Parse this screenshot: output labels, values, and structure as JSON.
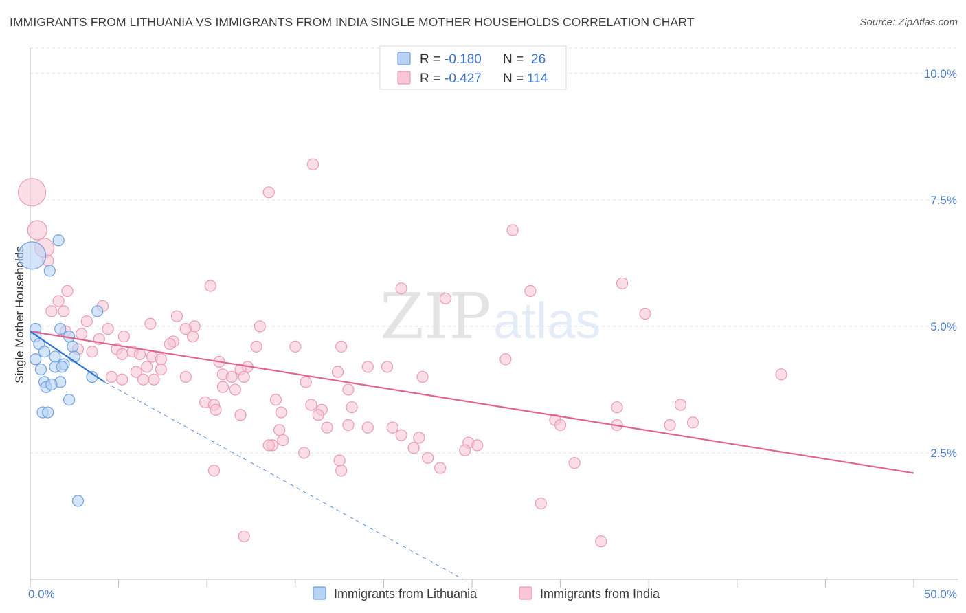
{
  "header": {
    "title": "IMMIGRANTS FROM LITHUANIA VS IMMIGRANTS FROM INDIA SINGLE MOTHER HOUSEHOLDS CORRELATION CHART",
    "source": "Source: ZipAtlas.com"
  },
  "watermark": {
    "zip": "ZIP",
    "atlas": "atlas"
  },
  "colors": {
    "lithuania_fill": "#b9d3f5",
    "lithuania_stroke": "#6f9fdc",
    "lithuania_line": "#2f72cf",
    "india_fill": "#f9c6d6",
    "india_stroke": "#e99ab5",
    "india_line": "#e0648f",
    "value_text": "#3b74c9",
    "grid": "#dde1e6"
  },
  "legend_top": [
    {
      "r_label": "R = ",
      "r_value": "-0.180",
      "n_label": "N = ",
      "n_value": "26"
    },
    {
      "r_label": "R = ",
      "r_value": "-0.427",
      "n_label": "N = ",
      "n_value": "114"
    }
  ],
  "chart_data": {
    "type": "scatter",
    "title": "IMMIGRANTS FROM LITHUANIA VS IMMIGRANTS FROM INDIA SINGLE MOTHER HOUSEHOLDS CORRELATION CHART",
    "xlabel": "",
    "ylabel": "Single Mother Households",
    "xlim": [
      0,
      50
    ],
    "ylim": [
      0,
      10.5
    ],
    "x_tick_labels": [
      "0.0%",
      "50.0%"
    ],
    "y_ticks": [
      2.5,
      5.0,
      7.5,
      10.0
    ],
    "y_tick_labels": [
      "2.5%",
      "5.0%",
      "7.5%",
      "10.0%"
    ],
    "grid": true,
    "legend_position": "bottom-center",
    "series": [
      {
        "name": "Immigrants from Lithuania",
        "r": -0.18,
        "n": 26,
        "trend": {
          "x": [
            0,
            4.2
          ],
          "y": [
            4.9,
            3.9
          ]
        },
        "trend_extension": {
          "x": [
            4.2,
            24.5
          ],
          "y": [
            3.9,
            0
          ]
        },
        "points": [
          {
            "x": 0.1,
            "y": 6.4,
            "s": 3
          },
          {
            "x": 1.6,
            "y": 6.7,
            "s": 1
          },
          {
            "x": 1.1,
            "y": 6.1,
            "s": 1
          },
          {
            "x": 3.8,
            "y": 5.3,
            "s": 1
          },
          {
            "x": 0.3,
            "y": 4.95,
            "s": 1
          },
          {
            "x": 1.7,
            "y": 4.95,
            "s": 1
          },
          {
            "x": 0.3,
            "y": 4.8,
            "s": 1
          },
          {
            "x": 2.2,
            "y": 4.8,
            "s": 1
          },
          {
            "x": 0.5,
            "y": 4.65,
            "s": 1
          },
          {
            "x": 2.4,
            "y": 4.6,
            "s": 1
          },
          {
            "x": 0.8,
            "y": 4.5,
            "s": 1
          },
          {
            "x": 0.3,
            "y": 4.35,
            "s": 1
          },
          {
            "x": 2.5,
            "y": 4.4,
            "s": 1
          },
          {
            "x": 1.4,
            "y": 4.4,
            "s": 1
          },
          {
            "x": 1.9,
            "y": 4.25,
            "s": 1
          },
          {
            "x": 1.4,
            "y": 4.2,
            "s": 1
          },
          {
            "x": 0.6,
            "y": 4.15,
            "s": 1
          },
          {
            "x": 1.8,
            "y": 4.2,
            "s": 1
          },
          {
            "x": 3.5,
            "y": 4.0,
            "s": 1
          },
          {
            "x": 0.8,
            "y": 3.9,
            "s": 1
          },
          {
            "x": 1.7,
            "y": 3.9,
            "s": 1
          },
          {
            "x": 0.9,
            "y": 3.8,
            "s": 1
          },
          {
            "x": 1.2,
            "y": 3.85,
            "s": 1
          },
          {
            "x": 2.2,
            "y": 3.55,
            "s": 1
          },
          {
            "x": 0.7,
            "y": 3.3,
            "s": 1
          },
          {
            "x": 1.0,
            "y": 3.3,
            "s": 1
          },
          {
            "x": 2.7,
            "y": 1.55,
            "s": 1
          }
        ]
      },
      {
        "name": "Immigrants from India",
        "r": -0.427,
        "n": 114,
        "trend": {
          "x": [
            0,
            50
          ],
          "y": [
            4.9,
            2.1
          ]
        },
        "points": [
          {
            "x": 0.1,
            "y": 7.65,
            "s": 3
          },
          {
            "x": 0.4,
            "y": 6.9,
            "s": 2
          },
          {
            "x": 0.8,
            "y": 6.55,
            "s": 2
          },
          {
            "x": 1.0,
            "y": 6.3,
            "s": 1
          },
          {
            "x": 16.0,
            "y": 8.2,
            "s": 1
          },
          {
            "x": 13.5,
            "y": 7.65,
            "s": 1
          },
          {
            "x": 27.3,
            "y": 6.9,
            "s": 1
          },
          {
            "x": 10.2,
            "y": 5.8,
            "s": 1
          },
          {
            "x": 21.0,
            "y": 5.75,
            "s": 1
          },
          {
            "x": 28.3,
            "y": 5.7,
            "s": 1
          },
          {
            "x": 33.5,
            "y": 5.85,
            "s": 1
          },
          {
            "x": 2.1,
            "y": 5.7,
            "s": 1
          },
          {
            "x": 1.6,
            "y": 5.5,
            "s": 1
          },
          {
            "x": 23.5,
            "y": 5.55,
            "s": 1
          },
          {
            "x": 4.1,
            "y": 5.4,
            "s": 1
          },
          {
            "x": 1.2,
            "y": 5.3,
            "s": 1
          },
          {
            "x": 1.9,
            "y": 5.3,
            "s": 1
          },
          {
            "x": 34.8,
            "y": 5.25,
            "s": 1
          },
          {
            "x": 8.3,
            "y": 5.2,
            "s": 1
          },
          {
            "x": 3.2,
            "y": 5.1,
            "s": 1
          },
          {
            "x": 6.8,
            "y": 5.05,
            "s": 1
          },
          {
            "x": 9.3,
            "y": 5.0,
            "s": 1
          },
          {
            "x": 13.0,
            "y": 5.0,
            "s": 1
          },
          {
            "x": 4.4,
            "y": 4.95,
            "s": 1
          },
          {
            "x": 8.8,
            "y": 4.95,
            "s": 1
          },
          {
            "x": 2.0,
            "y": 4.9,
            "s": 1
          },
          {
            "x": 2.9,
            "y": 4.85,
            "s": 1
          },
          {
            "x": 9.2,
            "y": 4.8,
            "s": 1
          },
          {
            "x": 5.3,
            "y": 4.8,
            "s": 1
          },
          {
            "x": 3.9,
            "y": 4.75,
            "s": 1
          },
          {
            "x": 8.1,
            "y": 4.7,
            "s": 1
          },
          {
            "x": 7.9,
            "y": 4.65,
            "s": 1
          },
          {
            "x": 15.0,
            "y": 4.6,
            "s": 1
          },
          {
            "x": 17.6,
            "y": 4.6,
            "s": 1
          },
          {
            "x": 12.8,
            "y": 4.6,
            "s": 1
          },
          {
            "x": 2.7,
            "y": 4.55,
            "s": 1
          },
          {
            "x": 4.9,
            "y": 4.55,
            "s": 1
          },
          {
            "x": 3.5,
            "y": 4.5,
            "s": 1
          },
          {
            "x": 5.8,
            "y": 4.5,
            "s": 1
          },
          {
            "x": 5.2,
            "y": 4.45,
            "s": 1
          },
          {
            "x": 6.2,
            "y": 4.45,
            "s": 1
          },
          {
            "x": 6.9,
            "y": 4.4,
            "s": 1
          },
          {
            "x": 7.4,
            "y": 4.35,
            "s": 1
          },
          {
            "x": 26.9,
            "y": 4.35,
            "s": 1
          },
          {
            "x": 10.7,
            "y": 4.3,
            "s": 1
          },
          {
            "x": 6.6,
            "y": 4.2,
            "s": 1
          },
          {
            "x": 12.3,
            "y": 4.2,
            "s": 1
          },
          {
            "x": 19.1,
            "y": 4.2,
            "s": 1
          },
          {
            "x": 20.2,
            "y": 4.2,
            "s": 1
          },
          {
            "x": 7.4,
            "y": 4.15,
            "s": 1
          },
          {
            "x": 11.9,
            "y": 4.15,
            "s": 1
          },
          {
            "x": 6.0,
            "y": 4.1,
            "s": 1
          },
          {
            "x": 17.4,
            "y": 4.1,
            "s": 1
          },
          {
            "x": 10.9,
            "y": 4.05,
            "s": 1
          },
          {
            "x": 42.5,
            "y": 4.05,
            "s": 1
          },
          {
            "x": 4.6,
            "y": 4.0,
            "s": 1
          },
          {
            "x": 8.8,
            "y": 4.0,
            "s": 1
          },
          {
            "x": 11.4,
            "y": 4.0,
            "s": 1
          },
          {
            "x": 12.1,
            "y": 4.0,
            "s": 1
          },
          {
            "x": 22.2,
            "y": 4.0,
            "s": 1
          },
          {
            "x": 5.2,
            "y": 3.95,
            "s": 1
          },
          {
            "x": 6.4,
            "y": 3.95,
            "s": 1
          },
          {
            "x": 7.0,
            "y": 3.95,
            "s": 1
          },
          {
            "x": 15.6,
            "y": 3.9,
            "s": 1
          },
          {
            "x": 10.9,
            "y": 3.8,
            "s": 1
          },
          {
            "x": 11.6,
            "y": 3.75,
            "s": 1
          },
          {
            "x": 18.0,
            "y": 3.75,
            "s": 1
          },
          {
            "x": 13.9,
            "y": 3.55,
            "s": 1
          },
          {
            "x": 9.9,
            "y": 3.5,
            "s": 1
          },
          {
            "x": 10.4,
            "y": 3.45,
            "s": 1
          },
          {
            "x": 15.9,
            "y": 3.45,
            "s": 1
          },
          {
            "x": 36.8,
            "y": 3.45,
            "s": 1
          },
          {
            "x": 18.2,
            "y": 3.4,
            "s": 1
          },
          {
            "x": 33.2,
            "y": 3.4,
            "s": 1
          },
          {
            "x": 10.5,
            "y": 3.35,
            "s": 1
          },
          {
            "x": 16.5,
            "y": 3.35,
            "s": 1
          },
          {
            "x": 16.3,
            "y": 3.25,
            "s": 1
          },
          {
            "x": 11.9,
            "y": 3.25,
            "s": 1
          },
          {
            "x": 14.2,
            "y": 3.3,
            "s": 1
          },
          {
            "x": 29.7,
            "y": 3.15,
            "s": 1
          },
          {
            "x": 37.5,
            "y": 3.1,
            "s": 1
          },
          {
            "x": 33.2,
            "y": 3.05,
            "s": 1
          },
          {
            "x": 36.2,
            "y": 3.05,
            "s": 1
          },
          {
            "x": 30.0,
            "y": 3.05,
            "s": 1
          },
          {
            "x": 18.0,
            "y": 3.05,
            "s": 1
          },
          {
            "x": 16.8,
            "y": 3.0,
            "s": 1
          },
          {
            "x": 19.1,
            "y": 3.0,
            "s": 1
          },
          {
            "x": 20.5,
            "y": 3.0,
            "s": 1
          },
          {
            "x": 14.1,
            "y": 2.95,
            "s": 1
          },
          {
            "x": 21.0,
            "y": 2.85,
            "s": 1
          },
          {
            "x": 22.0,
            "y": 2.8,
            "s": 1
          },
          {
            "x": 14.3,
            "y": 2.75,
            "s": 1
          },
          {
            "x": 13.7,
            "y": 2.65,
            "s": 1
          },
          {
            "x": 13.5,
            "y": 2.65,
            "s": 1
          },
          {
            "x": 24.8,
            "y": 2.7,
            "s": 1
          },
          {
            "x": 25.3,
            "y": 2.65,
            "s": 1
          },
          {
            "x": 21.7,
            "y": 2.6,
            "s": 1
          },
          {
            "x": 24.6,
            "y": 2.55,
            "s": 1
          },
          {
            "x": 15.5,
            "y": 2.5,
            "s": 1
          },
          {
            "x": 22.5,
            "y": 2.4,
            "s": 1
          },
          {
            "x": 17.5,
            "y": 2.35,
            "s": 1
          },
          {
            "x": 30.8,
            "y": 2.3,
            "s": 1
          },
          {
            "x": 23.2,
            "y": 2.2,
            "s": 1
          },
          {
            "x": 10.4,
            "y": 2.15,
            "s": 1
          },
          {
            "x": 17.6,
            "y": 2.15,
            "s": 1
          },
          {
            "x": 28.9,
            "y": 1.5,
            "s": 1
          },
          {
            "x": 12.1,
            "y": 0.85,
            "s": 1
          },
          {
            "x": 32.3,
            "y": 0.75,
            "s": 1
          }
        ]
      }
    ]
  }
}
